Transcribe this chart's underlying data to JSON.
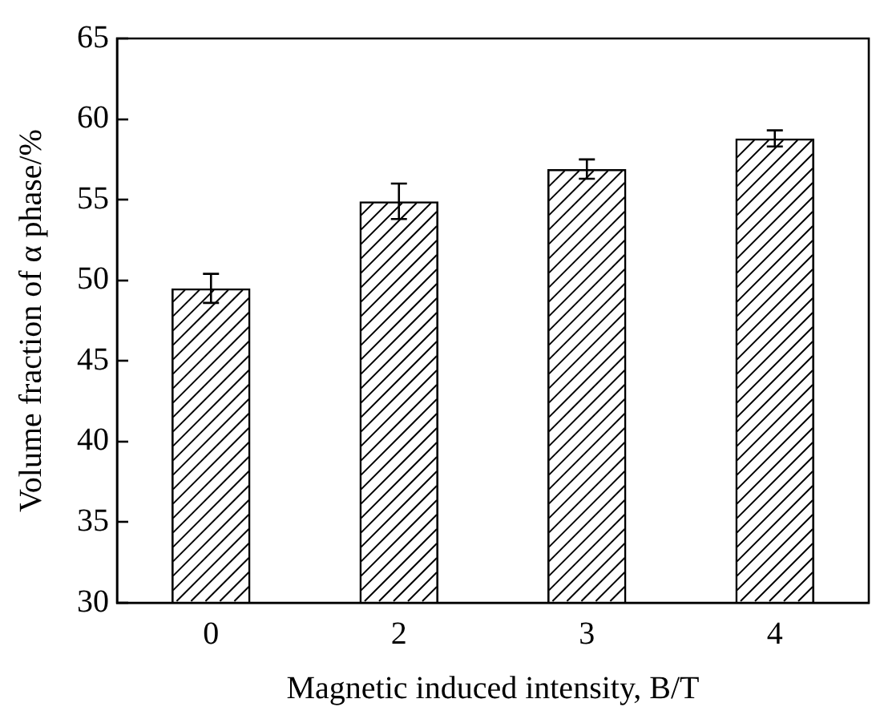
{
  "chart_data": {
    "type": "bar",
    "xlabel": "Magnetic induced intensity, B/T",
    "ylabel": "Volume fraction of α phase/%",
    "categories": [
      "0",
      "2",
      "3",
      "4"
    ],
    "values": [
      49.5,
      54.9,
      56.9,
      58.8
    ],
    "errors": [
      0.9,
      1.1,
      0.6,
      0.5
    ],
    "color": "#000000",
    "ylim": [
      30,
      65
    ],
    "yticks": [
      30,
      35,
      40,
      45,
      50,
      55,
      60,
      65
    ],
    "grid": false,
    "legend": false
  }
}
